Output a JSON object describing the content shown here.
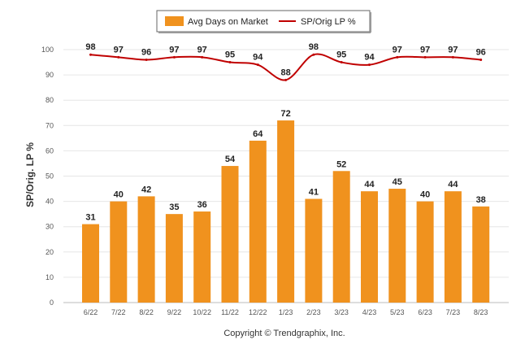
{
  "chart_data": {
    "type": "bar",
    "categories": [
      "6/22",
      "7/22",
      "8/22",
      "9/22",
      "10/22",
      "11/22",
      "12/22",
      "1/23",
      "2/23",
      "3/23",
      "4/23",
      "5/23",
      "6/23",
      "7/23",
      "8/23"
    ],
    "series": [
      {
        "name": "Avg Days on Market",
        "type": "bar",
        "color": "#f0921e",
        "values": [
          31,
          40,
          42,
          35,
          36,
          54,
          64,
          72,
          41,
          52,
          44,
          45,
          40,
          44,
          38
        ]
      },
      {
        "name": "SP/Orig LP %",
        "type": "line",
        "color": "#c00000",
        "values": [
          98,
          97,
          96,
          97,
          97,
          95,
          94,
          88,
          98,
          95,
          94,
          97,
          97,
          97,
          96
        ]
      }
    ],
    "ylabel": "SP/Orig. LP %",
    "ylim": [
      0,
      100
    ],
    "yticks": [
      "0",
      "10",
      "20",
      "30",
      "40",
      "50",
      "60",
      "70",
      "80",
      "90",
      "100"
    ],
    "grid": true,
    "legend": "top-center",
    "credit": "Copyright © Trendgraphix, Inc."
  }
}
